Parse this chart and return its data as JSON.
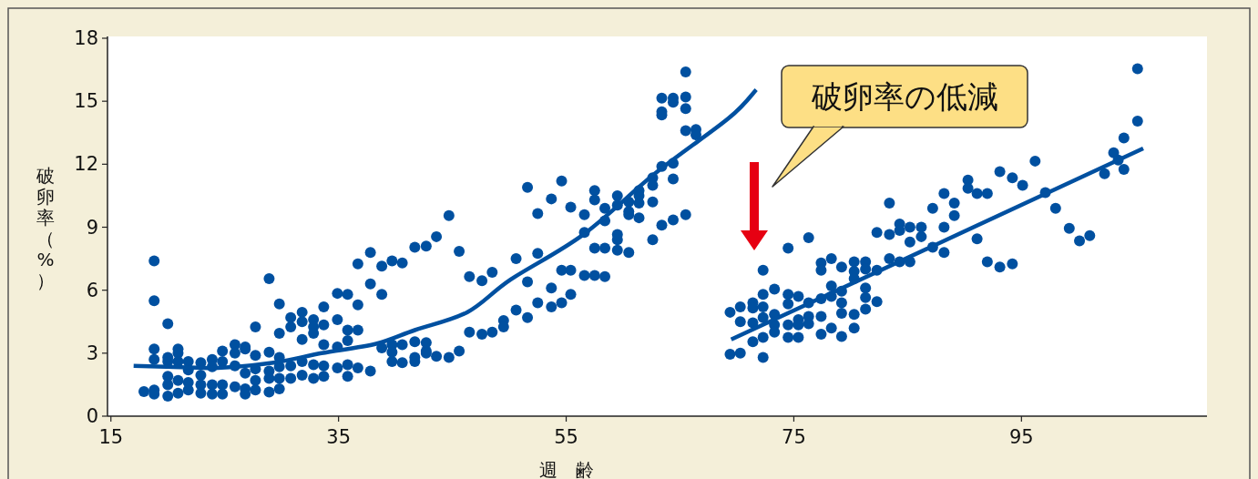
{
  "chart_data": {
    "type": "scatter",
    "xlabel": "週　齢",
    "ylabel": "破卵率（%）",
    "xlim": [
      14.7,
      111.3
    ],
    "ylim": [
      0,
      18
    ],
    "xticks": [
      15,
      35,
      55,
      75,
      95
    ],
    "yticks": [
      0,
      3,
      6,
      9,
      12,
      15,
      18
    ],
    "annotations": [
      "破卵率の低減"
    ],
    "series": [
      {
        "type": "scatter",
        "marker": "circle",
        "color": "#0050a0",
        "x": [
          17.9,
          18.8,
          18.8,
          18.8,
          18.8,
          18.8,
          18.8,
          20.0,
          20.0,
          20.0,
          20.0,
          20.0,
          20.0,
          20.9,
          20.9,
          20.9,
          20.9,
          20.9,
          21.8,
          21.8,
          21.8,
          21.8,
          22.9,
          22.9,
          22.9,
          22.9,
          23.9,
          23.9,
          23.9,
          23.9,
          24.8,
          24.8,
          24.8,
          24.8,
          25.9,
          25.9,
          25.9,
          25.9,
          26.8,
          26.8,
          26.8,
          26.8,
          26.8,
          27.7,
          27.7,
          27.7,
          27.7,
          27.7,
          28.9,
          28.9,
          28.9,
          28.9,
          28.9,
          29.8,
          29.8,
          29.8,
          29.8,
          29.8,
          29.8,
          30.8,
          30.8,
          30.8,
          30.8,
          31.8,
          31.8,
          31.8,
          31.8,
          31.8,
          32.8,
          32.8,
          32.8,
          32.8,
          32.8,
          33.7,
          33.7,
          33.7,
          33.7,
          33.7,
          34.9,
          34.9,
          34.9,
          34.9,
          35.8,
          35.8,
          35.8,
          35.8,
          35.8,
          36.7,
          36.7,
          36.7,
          36.7,
          37.8,
          37.8,
          37.8,
          38.8,
          38.8,
          38.8,
          39.7,
          39.7,
          39.7,
          39.7,
          40.6,
          40.6,
          40.6,
          41.7,
          41.7,
          41.7,
          41.7,
          42.7,
          42.7,
          42.7,
          42.7,
          43.6,
          43.6,
          44.7,
          44.7,
          45.6,
          45.6,
          46.5,
          46.5,
          47.6,
          47.6,
          48.5,
          48.5,
          49.5,
          49.5,
          50.6,
          50.6,
          51.6,
          51.6,
          51.6,
          52.5,
          52.5,
          52.5,
          53.7,
          53.7,
          53.7,
          54.6,
          54.6,
          54.6,
          55.4,
          55.4,
          55.4,
          56.6,
          56.6,
          56.6,
          57.5,
          57.5,
          57.5,
          57.5,
          58.4,
          58.4,
          58.4,
          58.4,
          59.5,
          59.5,
          59.5,
          59.5,
          59.5,
          60.5,
          60.5,
          60.5,
          60.5,
          61.4,
          61.4,
          61.4,
          61.4,
          62.6,
          62.6,
          62.6,
          62.6,
          63.4,
          63.4,
          63.4,
          63.4,
          63.4,
          64.4,
          64.4,
          64.4,
          64.4,
          64.4,
          65.5,
          65.5,
          65.5,
          65.5,
          65.5,
          66.4,
          66.4,
          69.4,
          69.4,
          70.3,
          70.3,
          70.3,
          71.4,
          71.4,
          71.4,
          71.4,
          72.3,
          72.3,
          72.3,
          72.3,
          72.3,
          72.3,
          73.3,
          73.3,
          73.3,
          73.3,
          74.5,
          74.5,
          74.5,
          74.5,
          74.5,
          75.4,
          75.4,
          75.4,
          75.4,
          76.3,
          76.3,
          76.3,
          76.3,
          77.4,
          77.4,
          77.4,
          77.4,
          77.4,
          78.3,
          78.3,
          78.3,
          78.3,
          79.2,
          79.2,
          79.2,
          79.2,
          79.2,
          80.3,
          80.3,
          80.3,
          80.3,
          80.3,
          81.3,
          81.3,
          81.3,
          81.3,
          81.3,
          82.3,
          82.3,
          82.3,
          83.4,
          83.4,
          83.4,
          84.3,
          84.3,
          84.3,
          85.2,
          85.2,
          85.2,
          86.2,
          86.2,
          87.2,
          87.2,
          88.2,
          88.2,
          88.2,
          89.1,
          89.1,
          90.3,
          90.3,
          91.1,
          91.1,
          92.0,
          92.0,
          93.1,
          93.1,
          94.2,
          94.2,
          95.1,
          96.2,
          97.1,
          98.0,
          99.2,
          100.1,
          101.0,
          102.3,
          103.1,
          103.5,
          104.0,
          104.0,
          105.2,
          105.2
        ],
        "values": [
          1.17,
          7.4,
          5.5,
          3.2,
          2.7,
          1.25,
          1.05,
          4.4,
          2.8,
          2.6,
          1.9,
          1.5,
          0.95,
          3.2,
          3.0,
          2.6,
          1.7,
          1.1,
          2.6,
          2.2,
          1.6,
          1.25,
          2.55,
          1.95,
          1.5,
          1.1,
          2.7,
          2.35,
          1.5,
          1.05,
          3.1,
          2.6,
          1.5,
          1.05,
          3.4,
          3.0,
          2.4,
          1.4,
          3.3,
          3.2,
          2.05,
          1.3,
          1.05,
          4.25,
          2.9,
          2.25,
          1.7,
          1.25,
          6.55,
          3.05,
          2.15,
          1.8,
          1.15,
          5.35,
          3.95,
          2.8,
          2.35,
          1.8,
          1.3,
          4.7,
          4.25,
          2.4,
          1.8,
          4.95,
          4.5,
          3.65,
          2.6,
          1.95,
          4.6,
          4.25,
          3.95,
          2.45,
          1.8,
          5.2,
          4.35,
          3.4,
          2.4,
          1.9,
          5.85,
          4.6,
          3.3,
          2.3,
          5.8,
          4.1,
          3.6,
          2.45,
          1.9,
          7.25,
          5.3,
          4.1,
          2.3,
          7.8,
          6.3,
          2.15,
          7.15,
          5.8,
          3.25,
          7.4,
          3.4,
          3.05,
          2.6,
          7.3,
          3.4,
          2.55,
          8.05,
          3.55,
          2.8,
          2.6,
          8.1,
          3.5,
          3.1,
          3.0,
          8.55,
          2.85,
          9.55,
          2.8,
          7.85,
          3.1,
          6.65,
          4.0,
          6.45,
          3.9,
          6.85,
          4.0,
          4.55,
          4.25,
          7.5,
          5.05,
          10.9,
          6.4,
          4.7,
          9.65,
          7.75,
          5.4,
          10.35,
          6.1,
          5.2,
          11.2,
          6.95,
          5.4,
          9.95,
          6.95,
          5.8,
          9.6,
          8.75,
          6.7,
          10.75,
          10.3,
          8.0,
          6.7,
          9.9,
          9.3,
          8.0,
          6.65,
          10.5,
          10.05,
          8.65,
          8.4,
          7.9,
          10.2,
          9.75,
          9.6,
          7.8,
          10.75,
          10.5,
          10.15,
          9.45,
          11.35,
          11.0,
          10.2,
          8.4,
          15.15,
          14.5,
          14.35,
          11.9,
          9.1,
          15.15,
          14.95,
          12.05,
          11.3,
          9.35,
          16.4,
          15.2,
          14.65,
          13.6,
          9.6,
          13.65,
          13.4,
          4.95,
          2.95,
          5.2,
          4.5,
          3.0,
          5.4,
          5.15,
          4.45,
          3.55,
          6.95,
          5.8,
          5.2,
          4.7,
          3.75,
          2.8,
          6.05,
          4.85,
          4.35,
          4.0,
          8.0,
          5.8,
          5.35,
          4.35,
          3.75,
          5.7,
          4.6,
          4.35,
          3.75,
          8.5,
          5.4,
          4.75,
          4.4,
          7.3,
          6.95,
          5.6,
          4.75,
          3.9,
          7.5,
          6.2,
          5.7,
          4.2,
          7.1,
          5.95,
          5.4,
          4.9,
          3.8,
          7.35,
          6.9,
          6.55,
          4.85,
          4.2,
          7.35,
          7.0,
          6.1,
          5.65,
          5.1,
          8.75,
          6.95,
          5.45,
          10.15,
          8.65,
          7.5,
          9.15,
          8.85,
          7.35,
          9.0,
          8.3,
          7.35,
          9.0,
          8.55,
          9.9,
          8.05,
          10.6,
          9.0,
          7.8,
          10.15,
          9.55,
          11.25,
          10.85,
          10.6,
          8.45,
          10.6,
          7.35,
          11.65,
          7.1,
          11.35,
          7.25,
          11.0,
          12.15,
          10.65,
          9.9,
          8.95,
          8.35,
          8.6,
          11.55,
          12.55,
          12.2,
          11.75,
          13.25,
          14.05,
          16.55
        ]
      },
      {
        "type": "line",
        "color": "#0050a0",
        "x": [
          17.0,
          20.0,
          24.4,
          29.3,
          33.5,
          38.3,
          41.7,
          46.3,
          50.1,
          56.5,
          62.9,
          69.3,
          71.7
        ],
        "values": [
          2.4,
          2.35,
          2.3,
          2.55,
          3.0,
          3.45,
          4.1,
          4.95,
          6.5,
          8.65,
          11.6,
          14.2,
          15.55
        ]
      },
      {
        "type": "line",
        "color": "#0050a0",
        "x": [
          69.5,
          105.7
        ],
        "values": [
          3.65,
          12.75
        ]
      }
    ]
  }
}
